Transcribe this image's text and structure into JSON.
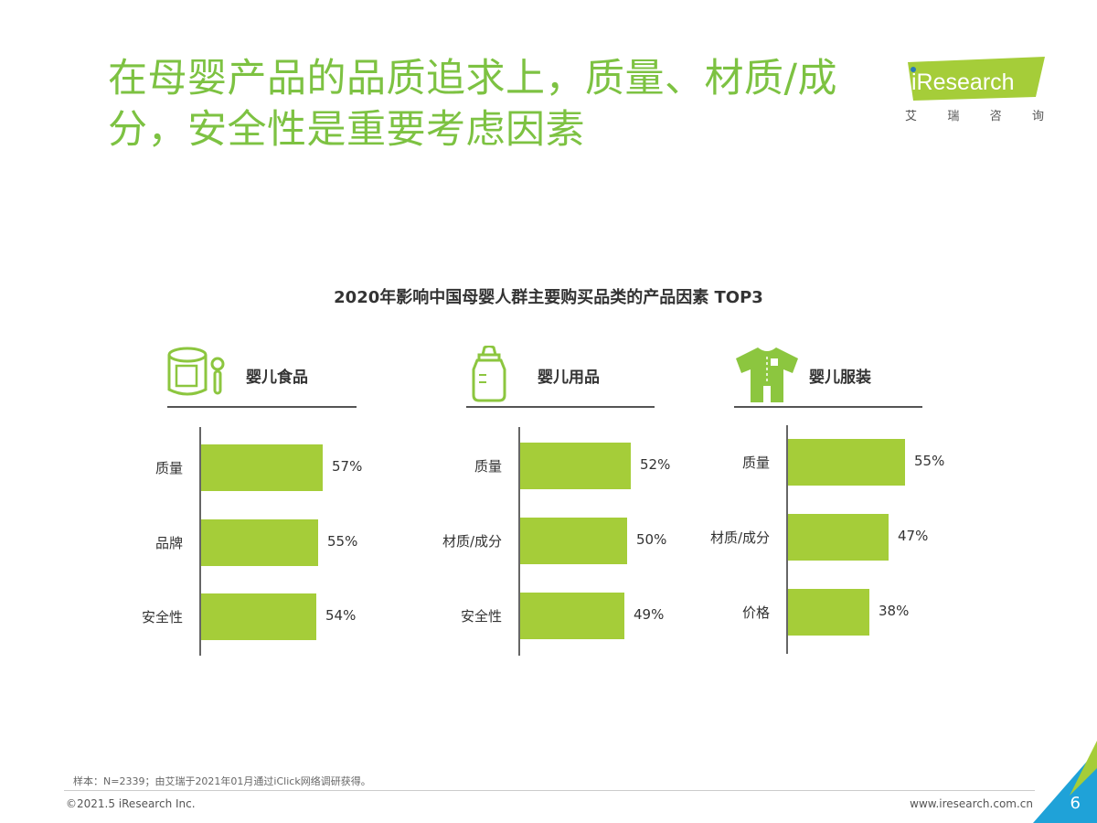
{
  "page": {
    "title": "在母婴产品的品质追求上，质量、材质/成分，安全性是重要考虑因素",
    "logo_text": "iResearch",
    "logo_subtitle": [
      "艾",
      "瑞",
      "咨",
      "询"
    ],
    "footnote": "样本：N=2339；由艾瑞于2021年01月通过iClick网络调研获得。",
    "copyright": "©2021.5 iResearch Inc.",
    "website": "www.iresearch.com.cn",
    "page_number": "6"
  },
  "colors": {
    "title": "#7dc242",
    "bar": "#a5cd39",
    "icon": "#8cc63f"
  },
  "icons": [
    "formula-can-icon",
    "baby-bottle-icon",
    "baby-onesie-icon"
  ],
  "chart_data": {
    "type": "bar",
    "orientation": "horizontal",
    "title": "2020年影响中国母婴人群主要购买品类的产品因素 TOP3",
    "unit": "%",
    "panels": [
      {
        "name": "婴儿食品",
        "categories": [
          "质量",
          "品牌",
          "安全性"
        ],
        "values": [
          57,
          55,
          54
        ]
      },
      {
        "name": "婴儿用品",
        "categories": [
          "质量",
          "材质/成分",
          "安全性"
        ],
        "values": [
          52,
          50,
          49
        ]
      },
      {
        "name": "婴儿服装",
        "categories": [
          "质量",
          "材质/成分",
          "价格"
        ],
        "values": [
          55,
          47,
          38
        ]
      }
    ]
  }
}
